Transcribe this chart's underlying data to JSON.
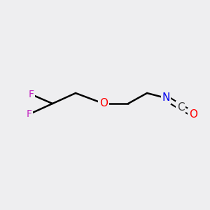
{
  "bg_color": "#eeeef0",
  "bond_color": "#000000",
  "atom_colors": {
    "F": "#c020c0",
    "O": "#ff0000",
    "N": "#0000ee",
    "C_label": "#404040"
  },
  "figsize": [
    3.0,
    3.0
  ],
  "dpi": 100,
  "font_size_atom": 11,
  "font_size_F": 10
}
